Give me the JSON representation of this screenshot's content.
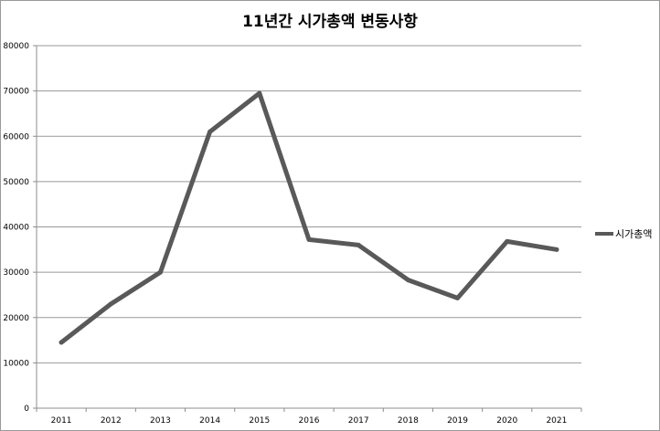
{
  "chart_data": {
    "type": "line",
    "title": "11년간 시가총액 변동사항",
    "xlabel": "",
    "ylabel": "",
    "categories": [
      "2011",
      "2012",
      "2013",
      "2014",
      "2015",
      "2016",
      "2017",
      "2018",
      "2019",
      "2020",
      "2021"
    ],
    "series": [
      {
        "name": "시가총액",
        "color": "#595959",
        "values": [
          14500,
          23000,
          30000,
          61000,
          69500,
          37200,
          36000,
          28300,
          24300,
          36800,
          35000
        ]
      }
    ],
    "ylim": [
      0,
      80000
    ],
    "yticks": [
      "0",
      "10000",
      "20000",
      "30000",
      "40000",
      "50000",
      "60000",
      "70000",
      "80000"
    ],
    "grid": true,
    "legend_position": "right",
    "colors": {
      "gridline": "#999999",
      "axis": "#8c8c8c",
      "series": "#595959"
    }
  }
}
